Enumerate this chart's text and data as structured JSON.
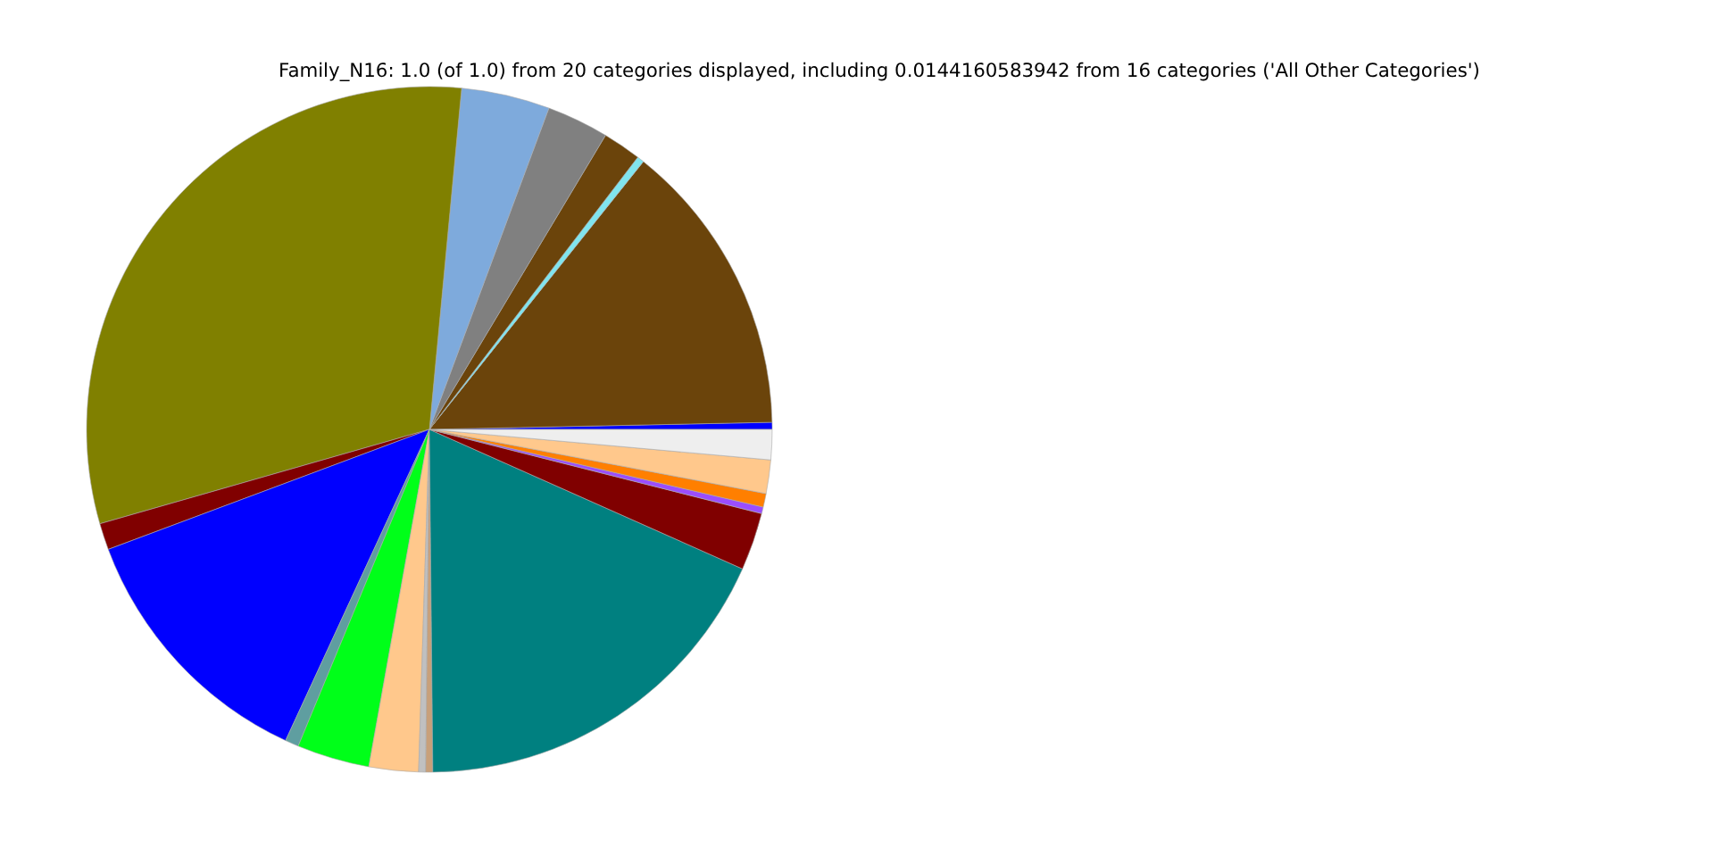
{
  "chart_data": {
    "type": "pie",
    "title": "Family_N16: 1.0 (of 1.0) from 20 categories displayed, including 0.0144160583942 from 16 categories ('All Other Categories')",
    "categories": [
      null,
      null,
      null,
      null,
      null,
      null,
      null,
      null,
      null,
      null,
      null,
      null,
      null,
      null,
      null,
      null,
      null,
      null,
      null,
      null
    ],
    "values": [
      0.33,
      13.94,
      0.33,
      1.81,
      2.92,
      4.17,
      30.94,
      1.25,
      12.42,
      0.64,
      3.42,
      2.33,
      0.33,
      0.33,
      18.17,
      2.72,
      0.31,
      0.64,
      1.58,
      1.42
    ],
    "colors": [
      "#0000ff",
      "#6b440b",
      "#80e5ee",
      "#6b440b",
      "#808080",
      "#7eaadc",
      "#808000",
      "#800000",
      "#0000ff",
      "#5f9ea0",
      "#00ff19",
      "#ffc88c",
      "#c0c0c0",
      "#c8a07a",
      "#008080",
      "#800000",
      "#9b4dff",
      "#ff7f00",
      "#ffc88c",
      "#eeeeee"
    ]
  }
}
